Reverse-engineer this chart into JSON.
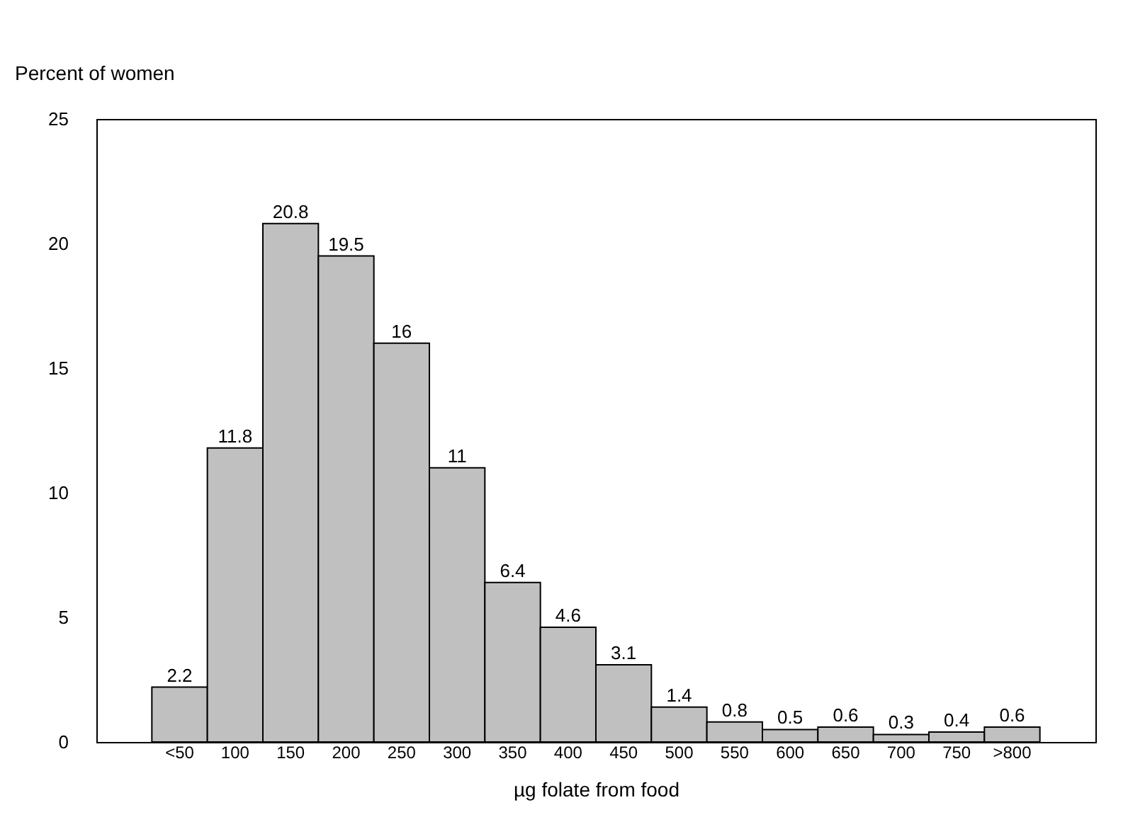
{
  "chart_data": {
    "type": "bar",
    "xlabel": "µg folate from food",
    "ylabel": "Percent of women",
    "categories": [
      "<50",
      "100",
      "150",
      "200",
      "250",
      "300",
      "350",
      "400",
      "450",
      "500",
      "550",
      "600",
      "650",
      "700",
      "750",
      ">800"
    ],
    "values": [
      2.2,
      11.8,
      20.8,
      19.5,
      16,
      11,
      6.4,
      4.6,
      3.1,
      1.4,
      0.8,
      0.5,
      0.6,
      0.3,
      0.4,
      0.6
    ],
    "color": "#c0c0c0",
    "ylim": [
      0,
      25
    ],
    "yticks": [
      0,
      5,
      10,
      15,
      20,
      25
    ],
    "data_labels": true,
    "grid": false
  }
}
